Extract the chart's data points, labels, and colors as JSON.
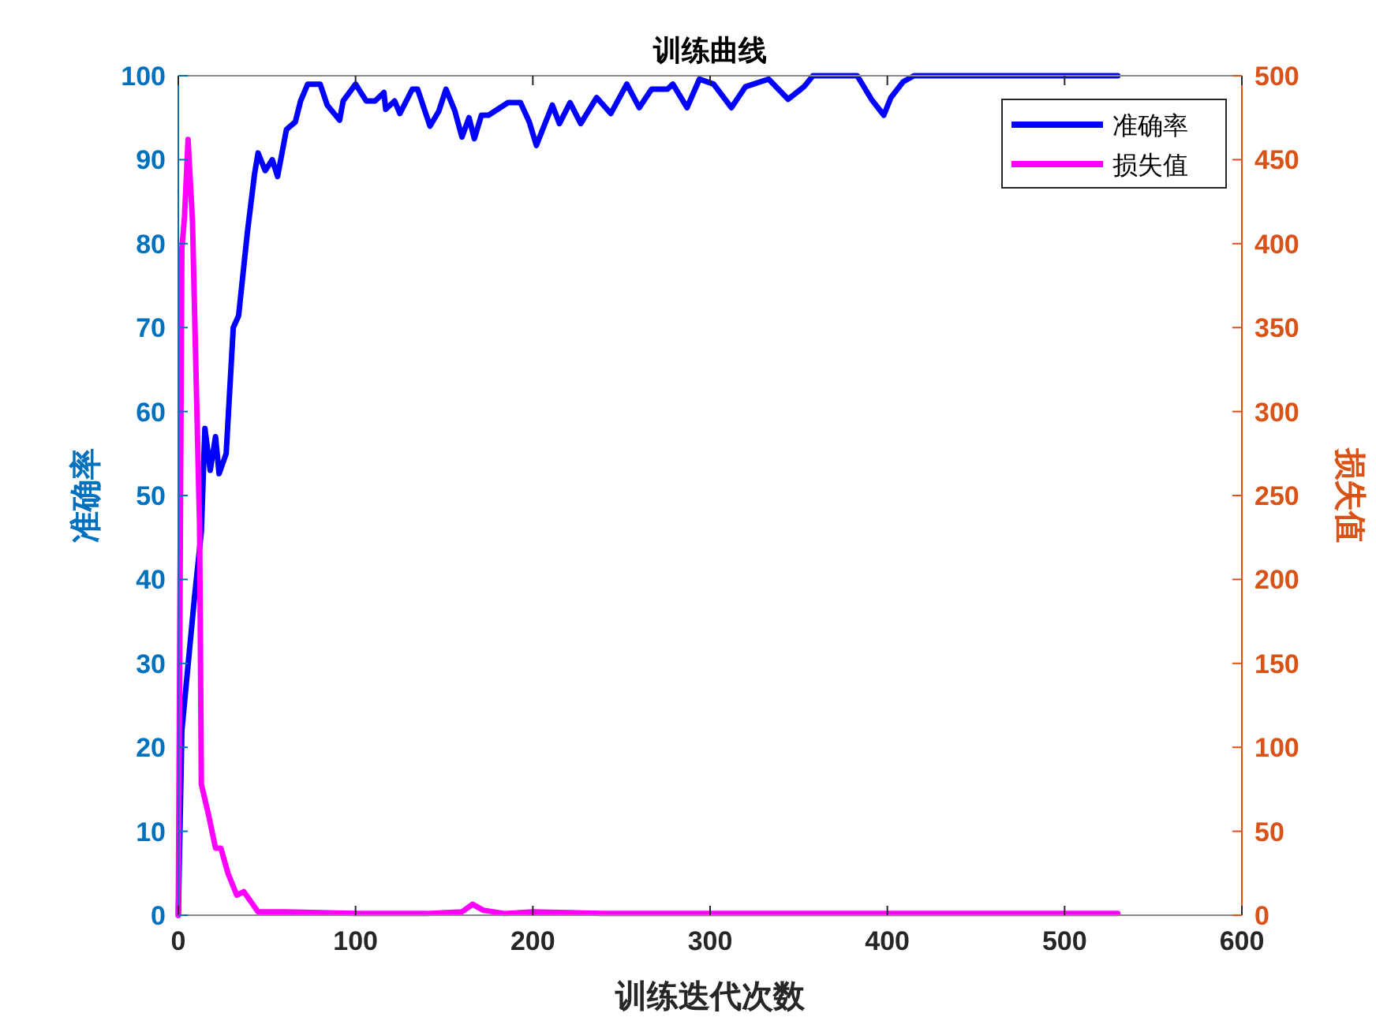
{
  "chart_data": {
    "type": "line",
    "title": "训练曲线",
    "xlabel": "训练迭代次数",
    "ylabel": "准确率",
    "y2label": "损失值",
    "xlim": [
      0,
      600
    ],
    "xticks": [
      0,
      100,
      200,
      300,
      400,
      500,
      600
    ],
    "ylim": [
      0,
      100
    ],
    "yticks": [
      0,
      10,
      20,
      30,
      40,
      50,
      60,
      70,
      80,
      90,
      100
    ],
    "y2lim": [
      0,
      500
    ],
    "y2ticks": [
      0,
      50,
      100,
      150,
      200,
      250,
      300,
      350,
      400,
      450,
      500
    ],
    "legend": "top right",
    "grid": false,
    "line_style": "solid",
    "series": [
      {
        "name": "准确率",
        "color": "#0000ff",
        "x": [
          0,
          2,
          9,
          13,
          15,
          18,
          21,
          23,
          27,
          31,
          34,
          39,
          43,
          45,
          49,
          53,
          56,
          61,
          66,
          69,
          73,
          80,
          84,
          91,
          93,
          100,
          106,
          111,
          116,
          117,
          122,
          125,
          132,
          135,
          142,
          147,
          151,
          156,
          160,
          164,
          167,
          171,
          175,
          186,
          193,
          198,
          202,
          211,
          215,
          221,
          227,
          236,
          244,
          253,
          260,
          267,
          276,
          279,
          287,
          294,
          302,
          312,
          320,
          333,
          344,
          353,
          358,
          383,
          391,
          398,
          402,
          409,
          415,
          530
        ],
        "values": [
          0,
          22,
          37.6,
          45.7,
          58,
          53,
          57,
          52.6,
          55,
          70,
          71.4,
          81.4,
          88.3,
          90.8,
          88.7,
          90,
          88,
          93.6,
          94.5,
          97,
          99,
          99,
          96.5,
          94.7,
          97,
          99,
          97,
          97,
          98,
          96,
          97,
          95.5,
          98.4,
          98.4,
          94,
          95.8,
          98.4,
          95.8,
          92.7,
          95,
          92.5,
          95.3,
          95.3,
          96.8,
          96.8,
          94.5,
          91.7,
          96.5,
          94.3,
          96.8,
          94.3,
          97.4,
          95.5,
          99,
          96.2,
          98.4,
          98.4,
          99,
          96.2,
          99.6,
          99,
          96.2,
          98.7,
          99.6,
          97.2,
          98.7,
          100,
          100,
          97.2,
          95.3,
          97.4,
          99.3,
          100,
          100
        ]
      },
      {
        "name": "损失值",
        "color": "#ff00ff",
        "axis": "y2",
        "x": [
          0,
          2,
          3.5,
          5.5,
          8,
          12,
          13,
          17,
          21,
          24,
          28,
          33,
          37,
          41,
          45,
          60,
          100,
          140,
          160,
          166,
          172,
          184,
          200,
          240,
          300,
          400,
          530
        ],
        "values": [
          0,
          397,
          416,
          462,
          413,
          232,
          78,
          60,
          40,
          40,
          25,
          12,
          14,
          8,
          2,
          2,
          1,
          1,
          2,
          6.5,
          3,
          1,
          2,
          1,
          1,
          1,
          1
        ]
      }
    ]
  }
}
